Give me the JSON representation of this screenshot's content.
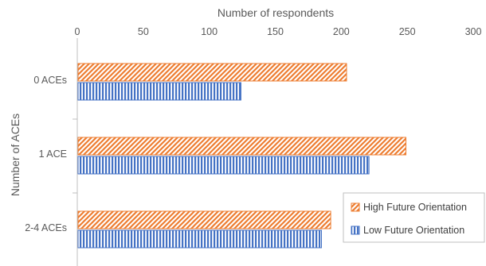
{
  "chart_data": {
    "type": "bar",
    "orientation": "horizontal",
    "xlabel": "Number of respondents",
    "ylabel": "Number of ACEs",
    "xlim": [
      0,
      300
    ],
    "xticks": [
      0,
      50,
      100,
      150,
      200,
      250,
      300
    ],
    "x_axis_position": "top",
    "grid": false,
    "categories": [
      "0 ACEs",
      "1 ACE",
      "2-4 ACEs"
    ],
    "series": [
      {
        "name": "High Future Orientation",
        "values": [
          204,
          249,
          192
        ],
        "color": "#ED7D31",
        "pattern": "diagonal-stripes"
      },
      {
        "name": "Low Future Orientation",
        "values": [
          124,
          221,
          185
        ],
        "color": "#4472C4",
        "pattern": "vertical-stripes"
      }
    ],
    "legend_position": "bottom-right"
  }
}
